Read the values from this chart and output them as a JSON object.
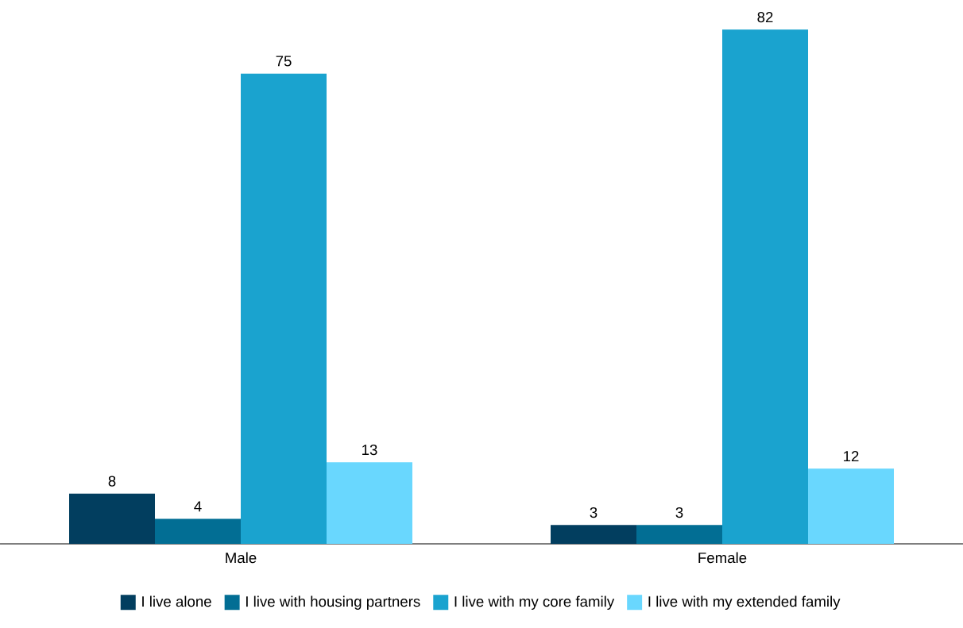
{
  "chart_data": {
    "type": "bar",
    "categories": [
      "Male",
      "Female"
    ],
    "series": [
      {
        "name": "I live alone",
        "color": "#023e5f",
        "values": [
          8,
          3
        ]
      },
      {
        "name": "I live with housing partners",
        "color": "#026e94",
        "values": [
          4,
          3
        ]
      },
      {
        "name": "I live with my core family",
        "color": "#1aa3cf",
        "values": [
          75,
          82
        ]
      },
      {
        "name": "I live with my extended family",
        "color": "#69d7fe",
        "values": [
          13,
          12
        ]
      }
    ],
    "data_labels": true,
    "legend": "bottom"
  }
}
